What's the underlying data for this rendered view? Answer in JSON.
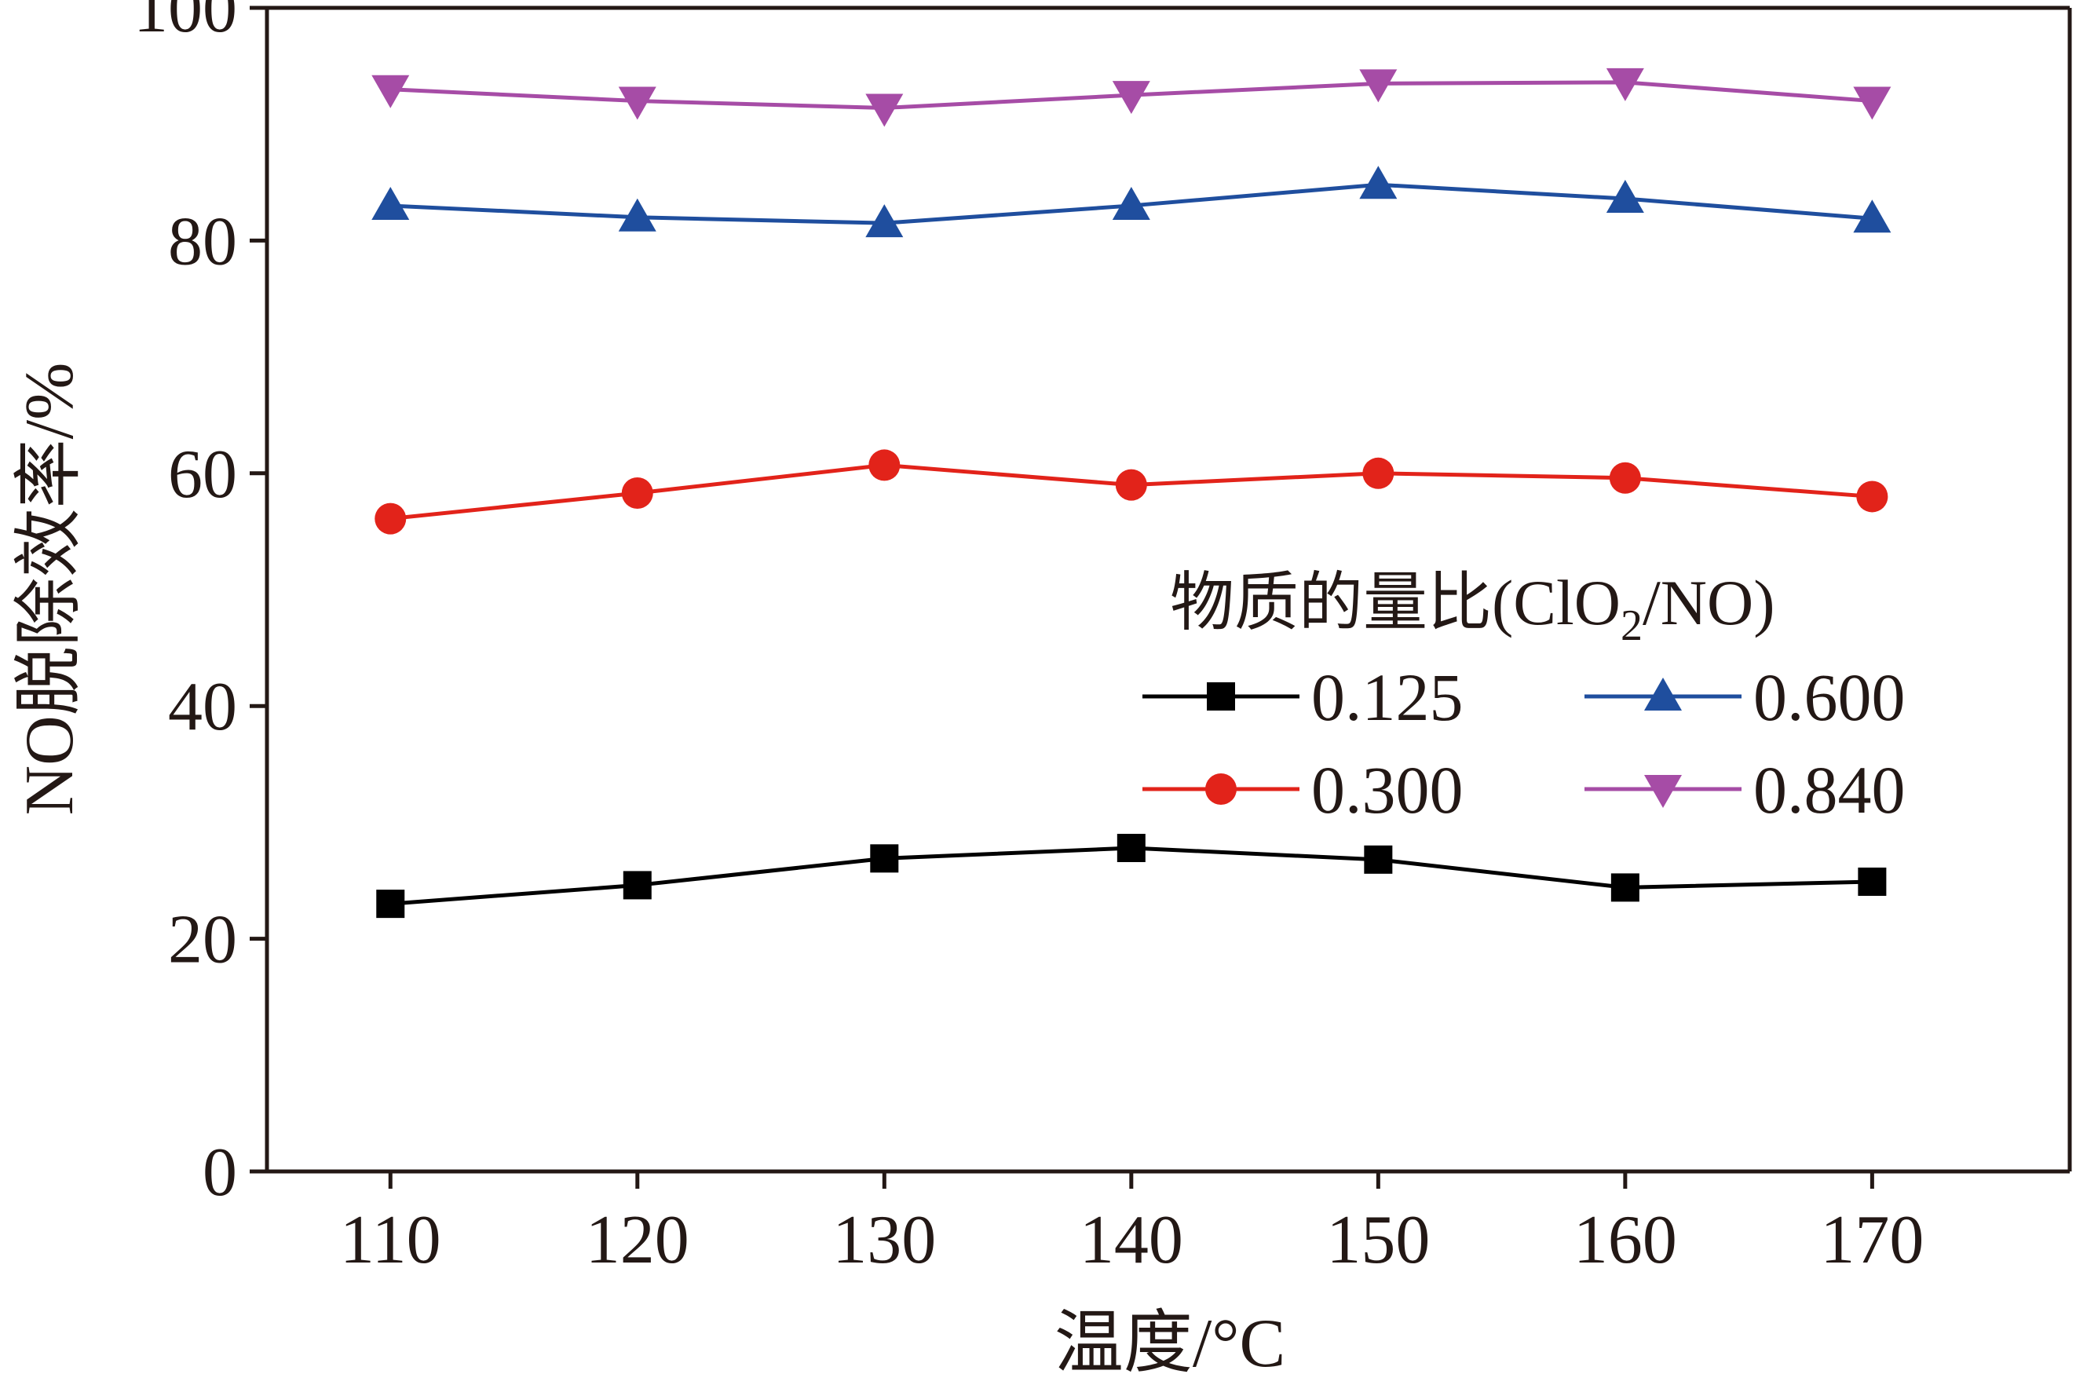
{
  "chart_data": {
    "type": "line",
    "title": "",
    "xlabel": "温度/°C",
    "ylabel": "NO脱除效率/%",
    "x": [
      110,
      120,
      130,
      140,
      150,
      160,
      170
    ],
    "xlim": [
      105,
      178
    ],
    "ylim": [
      0,
      100
    ],
    "xticks": [
      110,
      120,
      130,
      140,
      150,
      160,
      170
    ],
    "yticks": [
      0,
      20,
      40,
      60,
      80,
      100
    ],
    "grid": false,
    "legend": {
      "title_main": "物质的量比(ClO",
      "title_sub": "2",
      "title_end": "/NO)",
      "placement": "center-right",
      "columns": 2
    },
    "series": [
      {
        "name": "0.125",
        "color": "#000000",
        "marker": "square",
        "values": [
          23.0,
          24.6,
          26.9,
          27.8,
          26.8,
          24.4,
          24.9
        ]
      },
      {
        "name": "0.300",
        "color": "#e2231a",
        "marker": "circle",
        "values": [
          56.1,
          58.3,
          60.7,
          59.0,
          60.0,
          59.6,
          58.0
        ]
      },
      {
        "name": "0.600",
        "color": "#1f4e9e",
        "marker": "triangle-up",
        "values": [
          83.0,
          82.0,
          81.5,
          83.0,
          84.8,
          83.6,
          81.9
        ]
      },
      {
        "name": "0.840",
        "color": "#a64ca6",
        "marker": "triangle-down",
        "values": [
          93.0,
          92.0,
          91.4,
          92.5,
          93.5,
          93.6,
          92.0
        ]
      }
    ]
  }
}
